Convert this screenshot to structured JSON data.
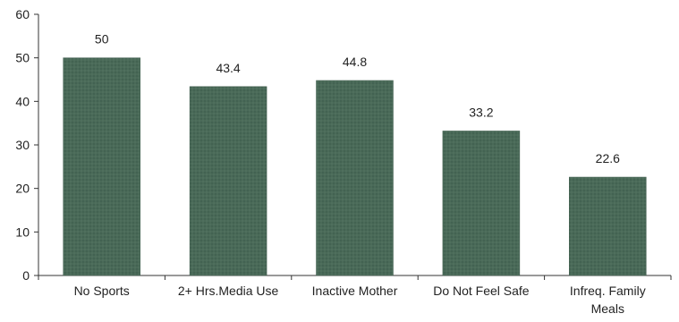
{
  "chart_data": {
    "type": "bar",
    "title": "",
    "xlabel": "",
    "ylabel": "",
    "categories": [
      [
        "No Sports"
      ],
      [
        "2+ Hrs.Media Use"
      ],
      [
        "Inactive Mother"
      ],
      [
        "Do Not Feel Safe"
      ],
      [
        "Infreq. Family",
        "Meals"
      ]
    ],
    "values": [
      50,
      43.4,
      44.8,
      33.2,
      22.6
    ],
    "value_labels": [
      "50",
      "43.4",
      "44.8",
      "33.2",
      "22.6"
    ],
    "y_ticks": [
      0,
      10,
      20,
      30,
      40,
      50,
      60
    ],
    "ylim": [
      0,
      60
    ],
    "grid": false,
    "legend": "none",
    "colors": {
      "bar": "#4a6a58",
      "axis": "#333333",
      "text": "#222222"
    }
  }
}
